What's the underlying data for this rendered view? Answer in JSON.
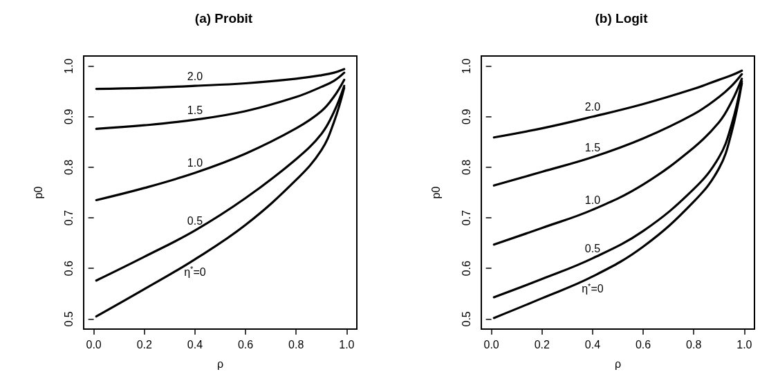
{
  "chart_data": [
    {
      "type": "line",
      "title": "(a) Probit",
      "xlabel": "ρ",
      "ylabel": "p0",
      "x": [
        0.01,
        0.2,
        0.4,
        0.6,
        0.8,
        0.9,
        0.95,
        0.99
      ],
      "series": [
        {
          "color": "#000000",
          "values": [
            0.955,
            0.957,
            0.961,
            0.966,
            0.975,
            0.982,
            0.987,
            0.994
          ]
        },
        {
          "color": "#000000",
          "values": [
            0.876,
            0.883,
            0.894,
            0.911,
            0.939,
            0.959,
            0.971,
            0.987
          ]
        },
        {
          "color": "#000000",
          "values": [
            0.735,
            0.759,
            0.789,
            0.827,
            0.877,
            0.911,
            0.94,
            0.973
          ]
        },
        {
          "color": "#000000",
          "values": [
            0.576,
            0.623,
            0.675,
            0.739,
            0.816,
            0.866,
            0.91,
            0.961
          ]
        },
        {
          "color": "#000000",
          "values": [
            0.505,
            0.559,
            0.618,
            0.686,
            0.775,
            0.834,
            0.89,
            0.957
          ]
        }
      ],
      "xlim": [
        -0.04,
        1.04
      ],
      "ylim": [
        0.48,
        1.02
      ],
      "xticks": [
        {
          "value": 0,
          "label": "0.0"
        },
        {
          "value": 0.2,
          "label": "0.2"
        },
        {
          "value": 0.4,
          "label": "0.4"
        },
        {
          "value": 0.6,
          "label": "0.6"
        },
        {
          "value": 0.8,
          "label": "0.8"
        },
        {
          "value": 1,
          "label": "1.0"
        }
      ],
      "yticks": [
        {
          "value": 0.5,
          "label": "0.5"
        },
        {
          "value": 0.6,
          "label": "0.6"
        },
        {
          "value": 0.7,
          "label": "0.7"
        },
        {
          "value": 0.8,
          "label": "0.8"
        },
        {
          "value": 0.9,
          "label": "0.9"
        },
        {
          "value": 1,
          "label": "1.0"
        }
      ],
      "annotations": [
        "2.0",
        "1.5",
        "1.0",
        "0.5",
        "η$^{*}$=0"
      ],
      "grid": false,
      "marker": "none",
      "line_style": "solid"
    },
    {
      "type": "line",
      "title": "(b) Logit",
      "xlabel": "ρ",
      "ylabel": "p0",
      "x": [
        0.01,
        0.2,
        0.4,
        0.6,
        0.8,
        0.9,
        0.95,
        0.99
      ],
      "series": [
        {
          "color": "#000000",
          "values": [
            0.859,
            0.877,
            0.9,
            0.925,
            0.955,
            0.973,
            0.982,
            0.991
          ]
        },
        {
          "color": "#000000",
          "values": [
            0.764,
            0.791,
            0.82,
            0.857,
            0.905,
            0.939,
            0.961,
            0.984
          ]
        },
        {
          "color": "#000000",
          "values": [
            0.647,
            0.68,
            0.716,
            0.766,
            0.839,
            0.889,
            0.93,
            0.975
          ]
        },
        {
          "color": "#000000",
          "values": [
            0.543,
            0.579,
            0.62,
            0.674,
            0.757,
            0.82,
            0.885,
            0.97
          ]
        },
        {
          "color": "#000000",
          "values": [
            0.502,
            0.541,
            0.584,
            0.643,
            0.732,
            0.798,
            0.87,
            0.966
          ]
        }
      ],
      "xlim": [
        -0.04,
        1.04
      ],
      "ylim": [
        0.48,
        1.02
      ],
      "xticks": [
        {
          "value": 0,
          "label": "0.0"
        },
        {
          "value": 0.2,
          "label": "0.2"
        },
        {
          "value": 0.4,
          "label": "0.4"
        },
        {
          "value": 0.6,
          "label": "0.6"
        },
        {
          "value": 0.8,
          "label": "0.8"
        },
        {
          "value": 1,
          "label": "1.0"
        }
      ],
      "yticks": [
        {
          "value": 0.5,
          "label": "0.5"
        },
        {
          "value": 0.6,
          "label": "0.6"
        },
        {
          "value": 0.7,
          "label": "0.7"
        },
        {
          "value": 0.8,
          "label": "0.8"
        },
        {
          "value": 0.9,
          "label": "0.9"
        },
        {
          "value": 1,
          "label": "1.0"
        }
      ],
      "annotations": [
        "2.0",
        "1.5",
        "1.0",
        "0.5",
        "η$^{*}$=0"
      ],
      "grid": false,
      "marker": "none",
      "line_style": "solid"
    }
  ]
}
